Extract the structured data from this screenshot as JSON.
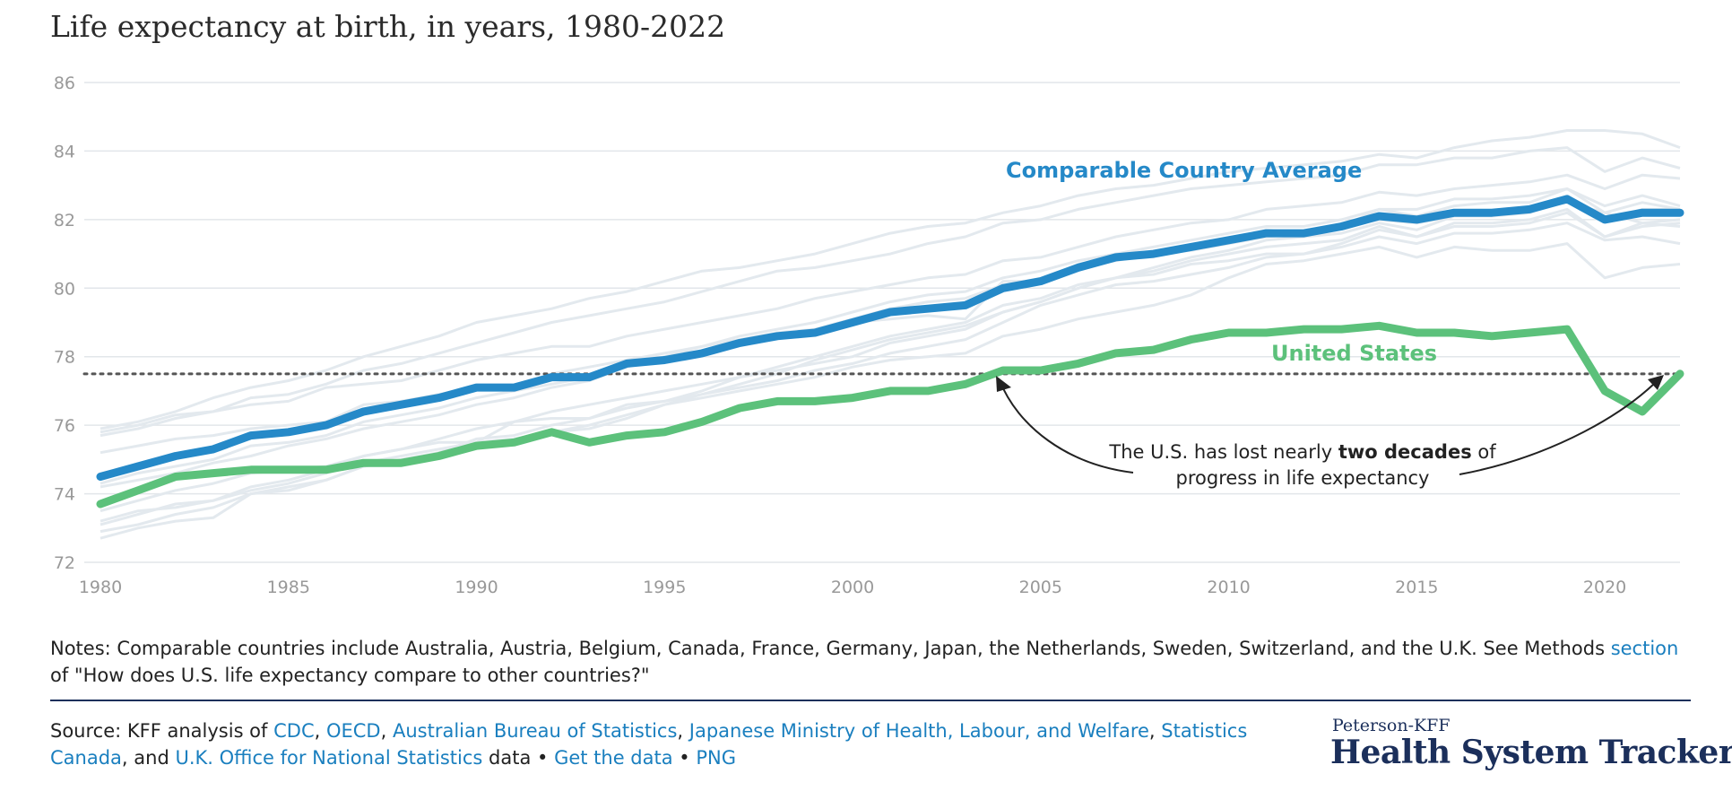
{
  "title": "Life expectancy at birth, in years, 1980-2022",
  "chart_data": {
    "type": "line",
    "title": "Life expectancy at birth, in years, 1980-2022",
    "xlabel": "",
    "ylabel": "",
    "xlim": [
      1980,
      2022
    ],
    "ylim": [
      72,
      86
    ],
    "x_ticks": [
      1980,
      1985,
      1990,
      1995,
      2000,
      2005,
      2010,
      2015,
      2020
    ],
    "y_ticks": [
      72,
      74,
      76,
      78,
      80,
      82,
      84,
      86
    ],
    "grid": true,
    "reference_line": {
      "y": 77.5,
      "style": "dotted"
    },
    "colors": {
      "comparable_average": "#2589c8",
      "united_states": "#5cc17b",
      "comparable_countries": "#e3e9ee",
      "grid": "#e2e6ea",
      "reference": "#555555",
      "tick": "#999999"
    },
    "x": [
      1980,
      1981,
      1982,
      1983,
      1984,
      1985,
      1986,
      1987,
      1988,
      1989,
      1990,
      1991,
      1992,
      1993,
      1994,
      1995,
      1996,
      1997,
      1998,
      1999,
      2000,
      2001,
      2002,
      2003,
      2004,
      2005,
      2006,
      2007,
      2008,
      2009,
      2010,
      2011,
      2012,
      2013,
      2014,
      2015,
      2016,
      2017,
      2018,
      2019,
      2020,
      2021,
      2022
    ],
    "series": [
      {
        "name": "Comparable Country Average",
        "values": [
          74.5,
          74.8,
          75.1,
          75.3,
          75.7,
          75.8,
          76.0,
          76.4,
          76.6,
          76.8,
          77.1,
          77.1,
          77.4,
          77.4,
          77.8,
          77.9,
          78.1,
          78.4,
          78.6,
          78.7,
          79.0,
          79.3,
          79.4,
          79.5,
          80.0,
          80.2,
          80.6,
          80.9,
          81.0,
          81.2,
          81.4,
          81.6,
          81.6,
          81.8,
          82.1,
          82.0,
          82.2,
          82.2,
          82.3,
          82.6,
          82.0,
          82.2,
          82.2
        ]
      },
      {
        "name": "United States",
        "values": [
          73.7,
          74.1,
          74.5,
          74.6,
          74.7,
          74.7,
          74.7,
          74.9,
          74.9,
          75.1,
          75.4,
          75.5,
          75.8,
          75.5,
          75.7,
          75.8,
          76.1,
          76.5,
          76.7,
          76.7,
          76.8,
          77.0,
          77.0,
          77.2,
          77.6,
          77.6,
          77.8,
          78.1,
          78.2,
          78.5,
          78.7,
          78.7,
          78.8,
          78.8,
          78.9,
          78.7,
          78.7,
          78.6,
          78.7,
          78.8,
          77.0,
          76.4,
          77.5
        ]
      }
    ],
    "background_series": [
      [
        75.9,
        76.1,
        76.4,
        76.8,
        77.1,
        77.3,
        77.6,
        78.0,
        78.3,
        78.6,
        79.0,
        79.2,
        79.4,
        79.7,
        79.9,
        80.2,
        80.5,
        80.6,
        80.8,
        81.0,
        81.3,
        81.6,
        81.8,
        81.9,
        82.2,
        82.4,
        82.7,
        82.9,
        83.0,
        83.2,
        83.4,
        83.5,
        83.6,
        83.7,
        83.9,
        83.8,
        84.1,
        84.3,
        84.4,
        84.6,
        84.6,
        84.5,
        84.1
      ],
      [
        75.8,
        76.0,
        76.3,
        76.4,
        76.8,
        76.9,
        77.2,
        77.6,
        77.8,
        78.1,
        78.4,
        78.7,
        79.0,
        79.2,
        79.4,
        79.6,
        79.9,
        80.2,
        80.5,
        80.6,
        80.8,
        81.0,
        81.3,
        81.5,
        81.9,
        82.0,
        82.3,
        82.5,
        82.7,
        82.9,
        83.0,
        83.1,
        83.2,
        83.3,
        83.6,
        83.6,
        83.8,
        83.8,
        84.0,
        84.1,
        83.4,
        83.8,
        83.5
      ],
      [
        75.7,
        75.9,
        76.2,
        76.4,
        76.6,
        76.7,
        77.1,
        77.2,
        77.3,
        77.6,
        77.9,
        78.1,
        78.3,
        78.3,
        78.6,
        78.8,
        79.0,
        79.2,
        79.4,
        79.7,
        79.9,
        80.1,
        80.3,
        80.4,
        80.8,
        80.9,
        81.2,
        81.5,
        81.7,
        81.9,
        82.0,
        82.3,
        82.4,
        82.5,
        82.8,
        82.7,
        82.9,
        83.0,
        83.1,
        83.3,
        82.9,
        83.3,
        83.2
      ],
      [
        74.2,
        74.4,
        74.6,
        74.9,
        75.1,
        75.4,
        75.6,
        75.9,
        76.1,
        76.3,
        76.6,
        76.8,
        77.1,
        77.3,
        77.7,
        78.0,
        78.3,
        78.6,
        78.8,
        79.0,
        79.3,
        79.6,
        79.8,
        79.9,
        80.3,
        80.5,
        80.8,
        81.0,
        81.2,
        81.4,
        81.6,
        81.8,
        81.8,
        82.0,
        82.3,
        82.3,
        82.6,
        82.6,
        82.7,
        82.9,
        82.4,
        82.7,
        82.4
      ],
      [
        74.3,
        74.6,
        74.8,
        75.0,
        75.4,
        75.5,
        75.7,
        76.1,
        76.3,
        76.5,
        76.8,
        77.0,
        77.2,
        77.4,
        77.9,
        77.9,
        78.1,
        78.4,
        78.6,
        78.8,
        79.0,
        79.1,
        79.2,
        79.1,
        80.2,
        80.2,
        80.7,
        80.9,
        81.0,
        81.2,
        81.4,
        81.7,
        81.6,
        81.8,
        82.3,
        82.1,
        82.4,
        82.5,
        82.5,
        82.9,
        82.2,
        82.5,
        82.3
      ],
      [
        75.2,
        75.4,
        75.6,
        75.7,
        75.9,
        76.0,
        76.1,
        76.6,
        76.7,
        76.9,
        77.1,
        77.1,
        77.5,
        77.7,
        77.9,
        78.1,
        78.3,
        78.5,
        78.7,
        78.8,
        79.1,
        79.4,
        79.6,
        79.7,
        80.1,
        80.2,
        80.6,
        80.8,
        81.0,
        81.1,
        81.3,
        81.5,
        81.6,
        81.8,
        82.0,
        81.9,
        82.1,
        82.2,
        82.3,
        82.5,
        82.2,
        81.9,
        81.8
      ],
      [
        73.1,
        73.4,
        73.7,
        73.8,
        74.2,
        74.4,
        74.7,
        75.1,
        75.3,
        75.6,
        75.9,
        76.1,
        76.4,
        76.6,
        76.8,
        77.0,
        77.2,
        77.4,
        77.7,
        78.0,
        78.3,
        78.6,
        78.8,
        79.0,
        79.5,
        79.7,
        80.1,
        80.3,
        80.6,
        80.9,
        81.1,
        81.4,
        81.5,
        81.6,
        81.9,
        81.7,
        82.1,
        82.1,
        82.2,
        82.6,
        82.0,
        82.3,
        82.3
      ],
      [
        73.5,
        73.8,
        74.1,
        74.3,
        74.6,
        74.7,
        74.8,
        75.1,
        75.3,
        75.5,
        75.5,
        76.1,
        76.2,
        76.2,
        76.6,
        76.7,
        77.0,
        77.4,
        77.6,
        77.8,
        78.0,
        78.4,
        78.6,
        78.8,
        79.3,
        79.6,
        80.0,
        80.3,
        80.4,
        80.7,
        80.8,
        81.0,
        81.0,
        81.3,
        81.7,
        81.5,
        81.9,
        81.9,
        82.0,
        82.3,
        81.5,
        81.9,
        82.0
      ],
      [
        72.9,
        73.1,
        73.4,
        73.6,
        74.0,
        74.2,
        74.4,
        74.8,
        75.0,
        75.2,
        75.4,
        75.6,
        75.8,
        76.0,
        76.3,
        76.6,
        76.9,
        77.2,
        77.5,
        77.9,
        78.2,
        78.5,
        78.7,
        78.9,
        79.3,
        79.6,
        80.0,
        80.3,
        80.5,
        80.8,
        81.0,
        81.2,
        81.3,
        81.4,
        81.8,
        81.5,
        81.8,
        81.8,
        81.9,
        82.2,
        81.5,
        81.8,
        81.9
      ],
      [
        73.2,
        73.5,
        73.6,
        73.8,
        74.1,
        74.3,
        74.6,
        74.9,
        75.1,
        75.3,
        75.5,
        75.6,
        75.8,
        75.9,
        76.2,
        76.6,
        76.8,
        77.0,
        77.2,
        77.4,
        77.7,
        77.9,
        78.0,
        78.1,
        78.6,
        78.8,
        79.1,
        79.3,
        79.5,
        79.8,
        80.3,
        80.7,
        80.8,
        81.0,
        81.2,
        80.9,
        81.2,
        81.1,
        81.1,
        81.3,
        80.3,
        80.6,
        80.7
      ],
      [
        72.7,
        73.0,
        73.2,
        73.3,
        74.0,
        74.1,
        74.4,
        74.8,
        75.0,
        75.2,
        75.6,
        75.7,
        76.0,
        76.2,
        76.5,
        76.7,
        76.9,
        77.1,
        77.3,
        77.6,
        77.8,
        78.1,
        78.3,
        78.5,
        79.0,
        79.5,
        79.8,
        80.1,
        80.2,
        80.4,
        80.6,
        80.9,
        81.0,
        81.2,
        81.5,
        81.3,
        81.6,
        81.6,
        81.7,
        81.9,
        81.4,
        81.5,
        81.3
      ]
    ],
    "annotation": {
      "line1_pre": "The U.S. has lost nearly ",
      "line1_bold": "two decades",
      "line1_post": " of",
      "line2": "progress in life expectancy"
    }
  },
  "notes": {
    "text_before": "Notes: Comparable countries include Australia, Austria, Belgium, Canada, France, Germany, Japan, the Netherlands, Sweden, Switzerland, and the U.K. See Methods ",
    "link": "section",
    "text_after": " of \"How does U.S. life expectancy compare to other countries?\""
  },
  "source": {
    "prefix": "Source: KFF analysis of ",
    "cdc": "CDC",
    "sep1": ", ",
    "oecd": "OECD",
    "sep2": ", ",
    "abs": "Australian Bureau of Statistics",
    "sep3": ", ",
    "japan": "Japanese Ministry of Health, Labour, and Welfare",
    "sep4": ", ",
    "statcan": "Statistics Canada",
    "sep5": ", and ",
    "ons": "U.K. Office for National Statistics",
    "sep6": " data • ",
    "get_data": "Get the data",
    "sep7": " • ",
    "png": "PNG"
  },
  "brand": {
    "top": "Peterson-KFF",
    "main": "Health System Tracker"
  }
}
